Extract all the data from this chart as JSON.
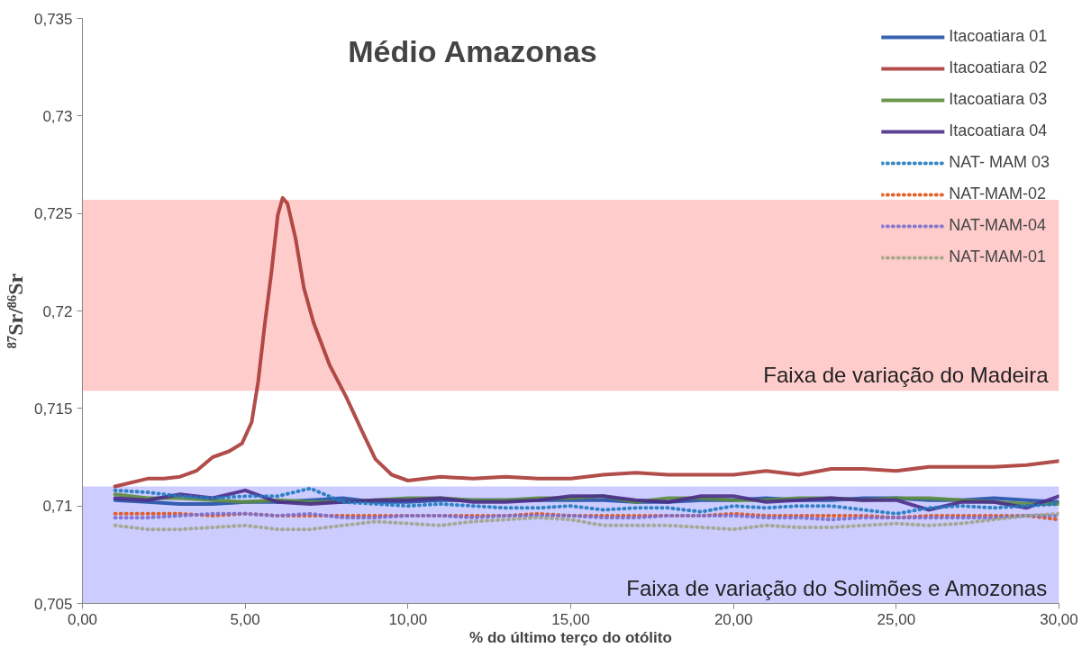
{
  "chart_data": {
    "type": "line",
    "title": "Médio Amazonas",
    "xlabel": "% do último terço do otólito",
    "ylabel": "⁸⁷Sr/⁸⁶Sr",
    "xlim": [
      0,
      30
    ],
    "ylim": [
      0.705,
      0.735
    ],
    "xticks": [
      {
        "value": 0,
        "label": "0,00"
      },
      {
        "value": 5,
        "label": "5,00"
      },
      {
        "value": 10,
        "label": "10,00"
      },
      {
        "value": 15,
        "label": "15,00"
      },
      {
        "value": 20,
        "label": "20,00"
      },
      {
        "value": 25,
        "label": "25,00"
      },
      {
        "value": 30,
        "label": "30,00"
      }
    ],
    "yticks": [
      {
        "value": 0.705,
        "label": "0,705"
      },
      {
        "value": 0.71,
        "label": "0,71"
      },
      {
        "value": 0.715,
        "label": "0,715"
      },
      {
        "value": 0.72,
        "label": "0,72"
      },
      {
        "value": 0.725,
        "label": "0,725"
      },
      {
        "value": 0.73,
        "label": "0,73"
      },
      {
        "value": 0.735,
        "label": "0,735"
      }
    ],
    "grid": false,
    "legend": "top right",
    "marker": "none",
    "x": [
      1,
      2,
      3,
      4,
      5,
      6,
      7,
      8,
      9,
      10,
      11,
      12,
      13,
      14,
      15,
      16,
      17,
      18,
      19,
      20,
      21,
      22,
      23,
      24,
      25,
      26,
      27,
      28,
      29,
      30
    ],
    "bands": [
      {
        "axis": "y",
        "from": 0.7159,
        "to": 0.7257,
        "label": "Faixa de variação do Madeira",
        "color": "#ffcccc"
      },
      {
        "axis": "y",
        "from": 0.705,
        "to": 0.711,
        "label": "Faixa de variação do Solimões e Amozonas",
        "color": "#ccccff"
      }
    ],
    "series": [
      {
        "name": "Itacoatiara 01",
        "color": "#2452a8",
        "line_style": "solid",
        "values": [
          0.7103,
          0.7102,
          0.7101,
          0.7101,
          0.7102,
          0.7102,
          0.7103,
          0.7104,
          0.7102,
          0.7102,
          0.7103,
          0.7103,
          0.7103,
          0.7103,
          0.7103,
          0.7103,
          0.7102,
          0.7102,
          0.7103,
          0.7103,
          0.7104,
          0.7103,
          0.7103,
          0.7104,
          0.7104,
          0.7103,
          0.7103,
          0.7104,
          0.7103,
          0.7102
        ]
      },
      {
        "name": "Itacoatiara 02",
        "color": "#a93a36",
        "line_style": "solid",
        "x": [
          1,
          2,
          2.5,
          3,
          3.5,
          4,
          4.5,
          4.9,
          5.2,
          5.4,
          5.6,
          5.8,
          6,
          6.15,
          6.3,
          6.55,
          6.8,
          7.1,
          7.6,
          8.1,
          8.6,
          9,
          9.5,
          10,
          11,
          12,
          13,
          14,
          15,
          16,
          17,
          18,
          19,
          20,
          21,
          22,
          23,
          24,
          25,
          26,
          27,
          28,
          29,
          30
        ],
        "values": [
          0.711,
          0.7114,
          0.7114,
          0.7115,
          0.7118,
          0.7125,
          0.7128,
          0.7132,
          0.7143,
          0.7164,
          0.7193,
          0.7219,
          0.7249,
          0.7258,
          0.7255,
          0.7237,
          0.7212,
          0.7194,
          0.7172,
          0.7156,
          0.7138,
          0.7124,
          0.7116,
          0.7113,
          0.7115,
          0.7114,
          0.7115,
          0.7114,
          0.7114,
          0.7116,
          0.7117,
          0.7116,
          0.7116,
          0.7116,
          0.7118,
          0.7116,
          0.7119,
          0.7119,
          0.7118,
          0.712,
          0.712,
          0.712,
          0.7121,
          0.7123
        ]
      },
      {
        "name": "Itacoatiara 03",
        "color": "#5c8c3c",
        "line_style": "solid",
        "values": [
          0.7106,
          0.7104,
          0.7104,
          0.7103,
          0.7102,
          0.7103,
          0.7102,
          0.7102,
          0.7103,
          0.7104,
          0.7104,
          0.7103,
          0.7103,
          0.7104,
          0.7104,
          0.7105,
          0.7102,
          0.7104,
          0.7104,
          0.7103,
          0.7103,
          0.7104,
          0.7104,
          0.7103,
          0.7104,
          0.7104,
          0.7103,
          0.7102,
          0.7101,
          0.7101
        ]
      },
      {
        "name": "Itacoatiara 04",
        "color": "#4b2e8a",
        "line_style": "solid",
        "values": [
          0.7104,
          0.7103,
          0.7106,
          0.7104,
          0.7108,
          0.7102,
          0.7101,
          0.7102,
          0.7103,
          0.7103,
          0.7104,
          0.7102,
          0.7102,
          0.7103,
          0.7105,
          0.7105,
          0.7103,
          0.7102,
          0.7105,
          0.7105,
          0.7102,
          0.7103,
          0.7104,
          0.7103,
          0.7103,
          0.7098,
          0.7102,
          0.7102,
          0.7099,
          0.7105
        ]
      },
      {
        "name": "NAT- MAM 03",
        "color": "#1f7ac0",
        "line_style": "dotted",
        "values": [
          0.7108,
          0.7107,
          0.7105,
          0.7104,
          0.7105,
          0.7105,
          0.7109,
          0.7102,
          0.7101,
          0.71,
          0.7101,
          0.71,
          0.7099,
          0.7099,
          0.71,
          0.7098,
          0.7099,
          0.7099,
          0.7097,
          0.71,
          0.7099,
          0.71,
          0.71,
          0.7098,
          0.7096,
          0.7099,
          0.71,
          0.7099,
          0.71,
          0.7101
        ]
      },
      {
        "name": "NAT-MAM-02",
        "color": "#e0531a",
        "line_style": "dotted",
        "values": [
          0.7096,
          0.7096,
          0.7096,
          0.7095,
          0.7096,
          0.7095,
          0.7095,
          0.7095,
          0.7095,
          0.7095,
          0.7095,
          0.7095,
          0.7095,
          0.7096,
          0.7095,
          0.7095,
          0.7095,
          0.7095,
          0.7095,
          0.7096,
          0.7095,
          0.7095,
          0.7095,
          0.7095,
          0.7094,
          0.7095,
          0.7095,
          0.7095,
          0.7095,
          0.7093
        ]
      },
      {
        "name": "NAT-MAM-04",
        "color": "#7a6fd0",
        "line_style": "dotted",
        "values": [
          0.7094,
          0.7094,
          0.7095,
          0.7096,
          0.7096,
          0.7095,
          0.7096,
          0.7094,
          0.7094,
          0.7095,
          0.7095,
          0.7094,
          0.7095,
          0.7095,
          0.7095,
          0.7094,
          0.7094,
          0.7095,
          0.7095,
          0.7095,
          0.7094,
          0.7094,
          0.7093,
          0.7094,
          0.7094,
          0.7094,
          0.7094,
          0.7094,
          0.7095,
          0.7095
        ]
      },
      {
        "name": "NAT-MAM-01",
        "color": "#a0a488",
        "line_style": "dotted",
        "values": [
          0.709,
          0.7088,
          0.7088,
          0.7089,
          0.709,
          0.7088,
          0.7088,
          0.709,
          0.7092,
          0.7091,
          0.709,
          0.7092,
          0.7093,
          0.7094,
          0.7093,
          0.709,
          0.709,
          0.709,
          0.7089,
          0.7088,
          0.709,
          0.7089,
          0.7089,
          0.709,
          0.7091,
          0.709,
          0.7091,
          0.7093,
          0.7095,
          0.7096
        ]
      }
    ]
  }
}
